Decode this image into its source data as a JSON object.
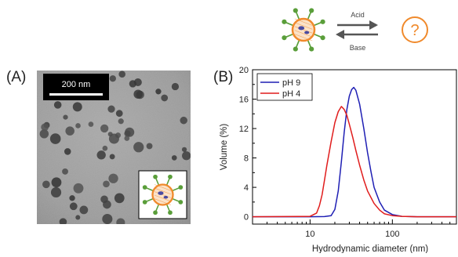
{
  "scheme": {
    "top_label": "Acid",
    "bottom_label": "Base",
    "unknown_symbol": "?",
    "arrow_color": "#555555",
    "unknown_color": "#f08a2c",
    "particle_color": "#f08a2c",
    "ligand_color": "#5a9e3a"
  },
  "panel_a": {
    "label": "(A)",
    "scale_bar_text": "200 nm"
  },
  "panel_b": {
    "label": "(B)"
  },
  "chart_data": {
    "type": "line",
    "xlabel": "Hydrodynamic diameter (nm)",
    "ylabel": "Volume (%)",
    "xscale": "log",
    "xlim": [
      2,
      600
    ],
    "ylim": [
      -1,
      20
    ],
    "xticks": [
      10,
      100
    ],
    "yticks": [
      0,
      4,
      8,
      12,
      16,
      20
    ],
    "legend_position": "top-left",
    "series": [
      {
        "name": "pH 9",
        "color": "#1f1fb4",
        "x": [
          2,
          10,
          15,
          18,
          20,
          22,
          24,
          26,
          28,
          30,
          32,
          34,
          36,
          40,
          45,
          50,
          55,
          60,
          70,
          80,
          100,
          130,
          200,
          600
        ],
        "y": [
          0,
          0,
          0.02,
          0.15,
          1.0,
          3.5,
          7.5,
          11.5,
          14.6,
          16.4,
          17.3,
          17.6,
          17.2,
          15.3,
          12.0,
          8.7,
          6.1,
          4.0,
          2.0,
          0.9,
          0.3,
          0.05,
          0,
          0
        ]
      },
      {
        "name": "pH 4",
        "color": "#e01c1c",
        "x": [
          2,
          10,
          12,
          13,
          14,
          15,
          16,
          18,
          20,
          22,
          24,
          26,
          28,
          30,
          33,
          36,
          40,
          45,
          50,
          60,
          70,
          80,
          100,
          130,
          200,
          600
        ],
        "y": [
          0,
          0.05,
          0.5,
          1.5,
          3.0,
          5.0,
          7.0,
          10.2,
          12.8,
          14.3,
          15.0,
          14.6,
          13.8,
          12.6,
          10.8,
          9.0,
          7.0,
          5.0,
          3.5,
          1.8,
          0.9,
          0.4,
          0.15,
          0.05,
          0,
          0
        ]
      }
    ]
  }
}
